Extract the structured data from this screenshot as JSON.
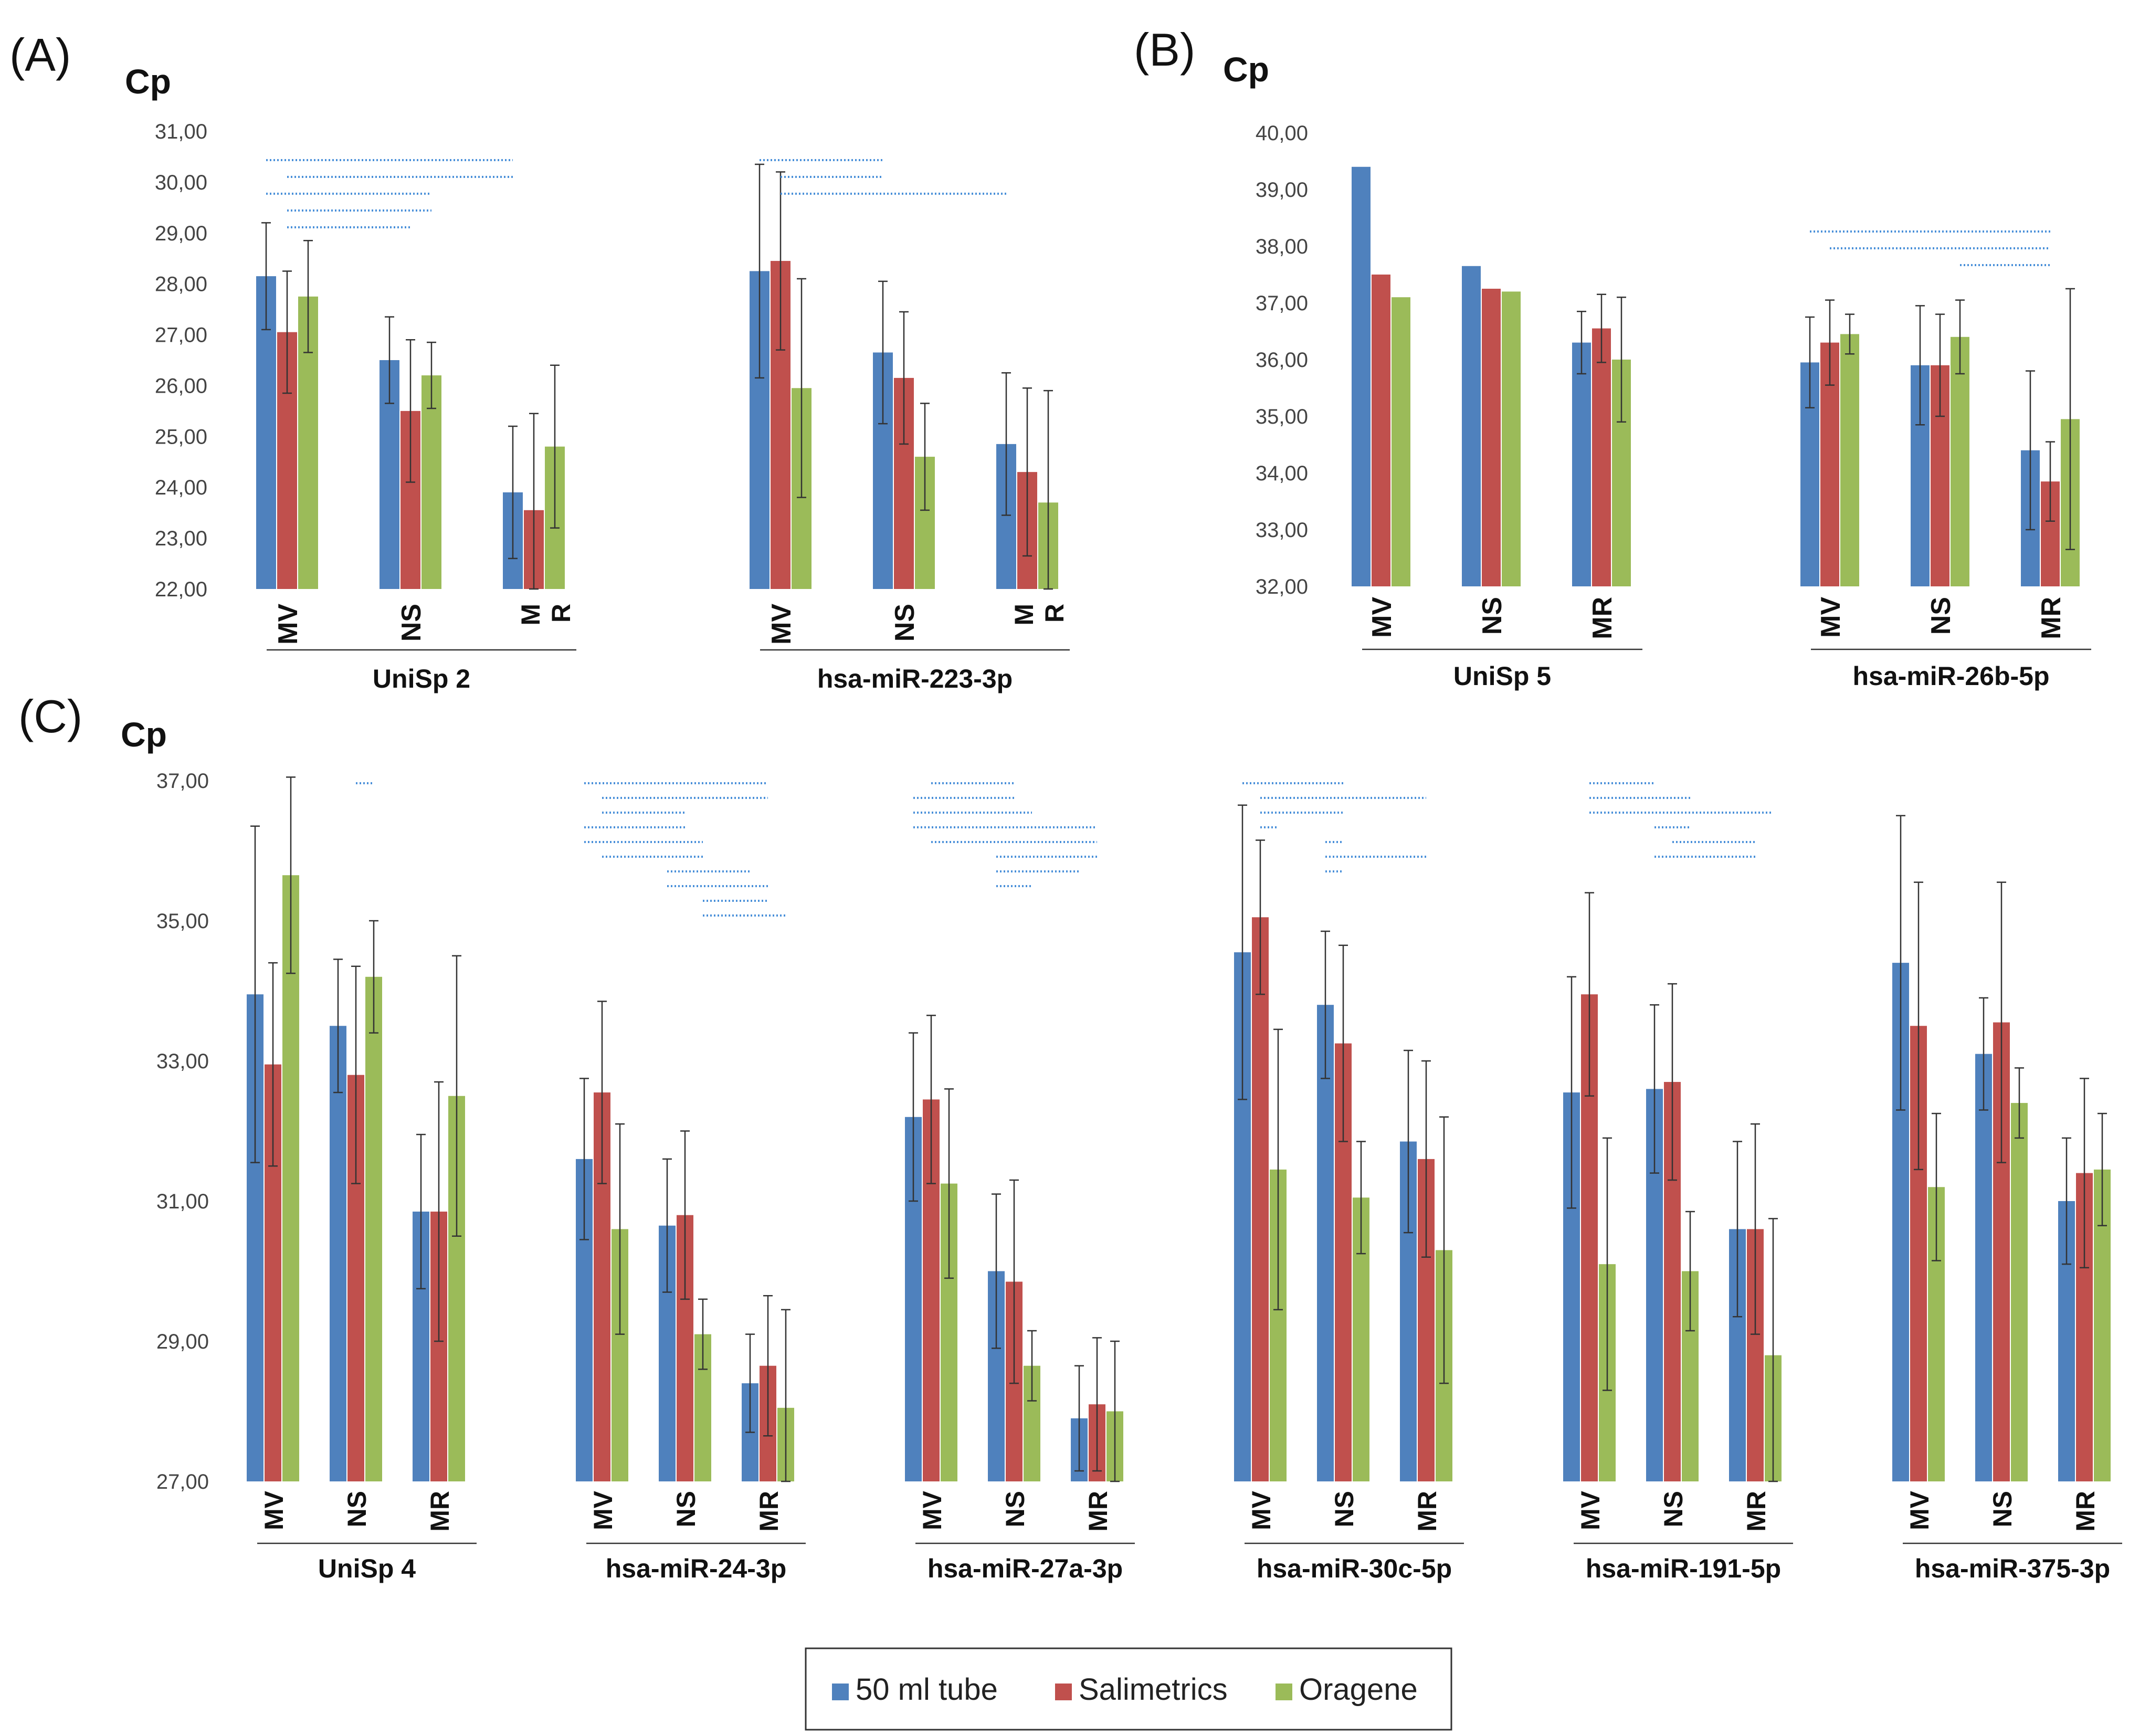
{
  "legend": [
    {
      "name": "50 ml tube",
      "color": "#4f81bd"
    },
    {
      "name": "Salimetrics",
      "color": "#c0504d"
    },
    {
      "name": "Oragene",
      "color": "#9bbb59"
    }
  ],
  "colors": {
    "sig_line": "#4a90d9",
    "error_bar": "#333333",
    "axis": "#999999"
  },
  "chart_data": [
    {
      "type": "bar",
      "panel": "(A)",
      "ylabel": "Cp",
      "ylim": [
        22,
        31
      ],
      "yticks": [
        "22,00",
        "23,00",
        "24,00",
        "25,00",
        "26,00",
        "27,00",
        "28,00",
        "29,00",
        "30,00",
        "31,00"
      ],
      "series_names": [
        "50 ml tube",
        "Salimetrics",
        "Oragene"
      ],
      "groups": [
        {
          "target": "UniSp 2",
          "categories": [
            "MV",
            "NS",
            "M R"
          ],
          "values": [
            [
              28.15,
              27.05,
              27.75
            ],
            [
              26.5,
              25.5,
              26.2
            ],
            [
              23.9,
              23.55,
              24.8
            ]
          ],
          "errors": [
            [
              1.05,
              1.2,
              1.1
            ],
            [
              0.85,
              1.4,
              0.65
            ],
            [
              1.3,
              1.9,
              1.6
            ]
          ],
          "sig_lines": [
            [
              0,
              6
            ],
            [
              1,
              6
            ],
            [
              0,
              5
            ],
            [
              1,
              5
            ],
            [
              1,
              4
            ]
          ]
        },
        {
          "target": "hsa-miR-223-3p",
          "categories": [
            "MV",
            "NS",
            "M R"
          ],
          "values": [
            [
              28.25,
              28.45,
              25.95
            ],
            [
              26.65,
              26.15,
              24.6
            ],
            [
              24.85,
              24.3,
              23.7
            ]
          ],
          "errors": [
            [
              2.1,
              1.75,
              2.15
            ],
            [
              1.4,
              1.3,
              1.05
            ],
            [
              1.4,
              1.65,
              2.2
            ]
          ],
          "sig_lines": [
            [
              0,
              3
            ],
            [
              1,
              3
            ],
            [
              1,
              6
            ]
          ]
        }
      ]
    },
    {
      "type": "bar",
      "panel": "(B)",
      "ylabel": "Cp",
      "ylim": [
        32,
        40
      ],
      "yticks": [
        "32,00",
        "33,00",
        "34,00",
        "35,00",
        "36,00",
        "37,00",
        "38,00",
        "39,00",
        "40,00"
      ],
      "series_names": [
        "50 ml tube",
        "Salimetrics",
        "Oragene"
      ],
      "groups": [
        {
          "target": "UniSp 5",
          "categories": [
            "MV",
            "NS",
            "MR"
          ],
          "values": [
            [
              39.4,
              37.5,
              37.1
            ],
            [
              37.65,
              37.25,
              37.2
            ],
            [
              36.3,
              36.55,
              36.0
            ]
          ],
          "errors": [
            [
              0,
              0,
              0
            ],
            [
              0,
              0,
              0
            ],
            [
              0.55,
              0.6,
              1.1
            ]
          ],
          "sig_lines": []
        },
        {
          "target": "hsa-miR-26b-5p",
          "categories": [
            "MV",
            "NS",
            "MR"
          ],
          "values": [
            [
              35.95,
              36.3,
              36.45
            ],
            [
              35.9,
              35.9,
              36.4
            ],
            [
              34.4,
              33.85,
              34.95
            ]
          ],
          "errors": [
            [
              0.8,
              0.75,
              0.35
            ],
            [
              1.05,
              0.9,
              0.65
            ],
            [
              1.4,
              0.7,
              2.3
            ]
          ],
          "sig_lines": [
            [
              0,
              7
            ],
            [
              1,
              7
            ],
            [
              5,
              7
            ]
          ]
        }
      ]
    },
    {
      "type": "bar",
      "panel": "(C)",
      "ylabel": "Cp",
      "ylim": [
        27,
        37
      ],
      "yticks": [
        "27,00",
        "29,00",
        "31,00",
        "33,00",
        "35,00",
        "37,00"
      ],
      "series_names": [
        "50 ml tube",
        "Salimetrics",
        "Oragene"
      ],
      "groups": [
        {
          "target": "UniSp 4",
          "categories": [
            "MV",
            "NS",
            "MR"
          ],
          "values": [
            [
              33.95,
              32.95,
              35.65
            ],
            [
              33.5,
              32.8,
              34.2
            ],
            [
              30.85,
              30.85,
              32.5
            ]
          ],
          "errors": [
            [
              2.4,
              1.45,
              1.4
            ],
            [
              0.95,
              1.55,
              0.8
            ],
            [
              1.1,
              1.85,
              2.0
            ]
          ],
          "sig_lines": [
            [
              4,
              5
            ]
          ]
        },
        {
          "target": "hsa-miR-24-3p",
          "categories": [
            "MV",
            "NS",
            "MR"
          ],
          "values": [
            [
              31.6,
              32.55,
              30.6
            ],
            [
              30.65,
              30.8,
              29.1
            ],
            [
              28.4,
              28.65,
              28.05
            ]
          ],
          "errors": [
            [
              1.15,
              1.3,
              1.5
            ],
            [
              0.95,
              1.2,
              0.5
            ],
            [
              0.7,
              1.0,
              1.4
            ]
          ],
          "sig_lines": [
            [
              0,
              7
            ],
            [
              1,
              7
            ],
            [
              1,
              4
            ],
            [
              0,
              4
            ],
            [
              0,
              5
            ],
            [
              1,
              5
            ],
            [
              3,
              6
            ],
            [
              3,
              7
            ],
            [
              5,
              7
            ],
            [
              5,
              8
            ]
          ]
        },
        {
          "target": "hsa-miR-27a-3p",
          "categories": [
            "MV",
            "NS",
            "MR"
          ],
          "values": [
            [
              32.2,
              32.45,
              31.25
            ],
            [
              30.0,
              29.85,
              28.65
            ],
            [
              27.9,
              28.1,
              28.0
            ]
          ],
          "errors": [
            [
              1.2,
              1.2,
              1.35
            ],
            [
              1.1,
              1.45,
              0.5
            ],
            [
              0.75,
              0.95,
              1.0
            ]
          ],
          "sig_lines": [
            [
              1,
              4
            ],
            [
              0,
              4
            ],
            [
              0,
              5
            ],
            [
              0,
              7
            ],
            [
              1,
              7
            ],
            [
              3,
              7
            ],
            [
              3,
              6
            ],
            [
              3,
              5
            ]
          ]
        },
        {
          "target": "hsa-miR-30c-5p",
          "categories": [
            "MV",
            "NS",
            "MR"
          ],
          "values": [
            [
              34.55,
              35.05,
              31.45
            ],
            [
              33.8,
              33.25,
              31.05
            ],
            [
              31.85,
              31.6,
              30.3
            ]
          ],
          "errors": [
            [
              2.1,
              1.1,
              2.0
            ],
            [
              1.05,
              1.4,
              0.8
            ],
            [
              1.3,
              1.4,
              1.9
            ]
          ],
          "sig_lines": [
            [
              0,
              4
            ],
            [
              1,
              7
            ],
            [
              1,
              4
            ],
            [
              1,
              2
            ],
            [
              3,
              4
            ],
            [
              3,
              7
            ],
            [
              3,
              4
            ]
          ]
        },
        {
          "target": "hsa-miR-191-5p",
          "categories": [
            "MV",
            "NS",
            "MR"
          ],
          "values": [
            [
              32.55,
              33.95,
              30.1
            ],
            [
              32.6,
              32.7,
              30.0
            ],
            [
              30.6,
              30.6,
              28.8
            ]
          ],
          "errors": [
            [
              1.65,
              1.45,
              1.8
            ],
            [
              1.2,
              1.4,
              0.85
            ],
            [
              1.25,
              1.5,
              1.95
            ]
          ],
          "sig_lines": [
            [
              1,
              3
            ],
            [
              1,
              5
            ],
            [
              1,
              8
            ],
            [
              3,
              5
            ],
            [
              4,
              7
            ],
            [
              3,
              7
            ]
          ]
        },
        {
          "target": "hsa-miR-375-3p",
          "categories": [
            "MV",
            "NS",
            "MR"
          ],
          "values": [
            [
              34.4,
              33.5,
              31.2
            ],
            [
              33.1,
              33.55,
              32.4
            ],
            [
              31.0,
              31.4,
              31.45
            ]
          ],
          "errors": [
            [
              2.1,
              2.05,
              1.05
            ],
            [
              0.8,
              2.0,
              0.5
            ],
            [
              0.9,
              1.35,
              0.8
            ]
          ],
          "sig_lines": []
        }
      ]
    }
  ]
}
